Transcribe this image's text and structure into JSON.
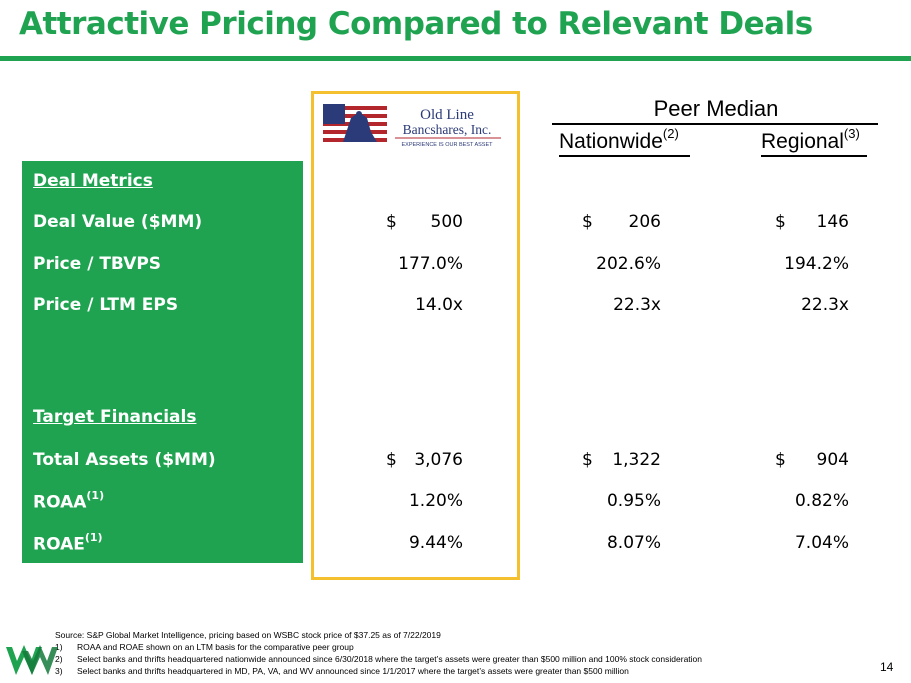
{
  "title": "Attractive Pricing Compared to Relevant Deals",
  "logo": {
    "line1": "Old Line",
    "line2": "Bancshares, Inc.",
    "tagline": "EXPERIENCE IS OUR BEST ASSET"
  },
  "peer_median": {
    "title": "Peer Median",
    "nationwide": "Nationwide",
    "nationwide_note": "(2)",
    "regional": "Regional",
    "regional_note": "(3)"
  },
  "sections": {
    "deal_metrics": "Deal Metrics",
    "target_financials": "Target Financials"
  },
  "rows": [
    {
      "label": "Deal Value ($MM)",
      "note": "",
      "old_line": "500",
      "old_cur": "$",
      "nationwide": "206",
      "nat_cur": "$",
      "regional": "146",
      "reg_cur": "$"
    },
    {
      "label": "Price / TBVPS",
      "note": "",
      "old_line": "177.0%",
      "old_cur": "",
      "nationwide": "202.6%",
      "nat_cur": "",
      "regional": "194.2%",
      "reg_cur": ""
    },
    {
      "label": "Price / LTM EPS",
      "note": "",
      "old_line": "14.0x",
      "old_cur": "",
      "nationwide": "22.3x",
      "nat_cur": "",
      "regional": "22.3x",
      "reg_cur": ""
    },
    {
      "label": "Total Assets ($MM)",
      "note": "",
      "old_line": "3,076",
      "old_cur": "$",
      "nationwide": "1,322",
      "nat_cur": "$",
      "regional": "904",
      "reg_cur": "$"
    },
    {
      "label": "ROAA",
      "note": "(1)",
      "old_line": "1.20%",
      "old_cur": "",
      "nationwide": "0.95%",
      "nat_cur": "",
      "regional": "0.82%",
      "reg_cur": ""
    },
    {
      "label": "ROAE",
      "note": "(1)",
      "old_line": "9.44%",
      "old_cur": "",
      "nationwide": "8.07%",
      "nat_cur": "",
      "regional": "7.04%",
      "reg_cur": ""
    }
  ],
  "footnotes": {
    "source": "Source: S&P Global Market Intelligence, pricing based on WSBC stock price of $37.25 as of 7/22/2019",
    "notes": [
      {
        "num": "1)",
        "text": "ROAA and ROAE shown on an LTM basis for the comparative peer group"
      },
      {
        "num": "2)",
        "text": "Select banks and thrifts headquartered nationwide announced since 6/30/2018 where the target’s assets were greater than $500 million and 100% stock consideration"
      },
      {
        "num": "3)",
        "text": "Select banks and thrifts headquartered in MD, PA, VA, and WV announced since 1/1/2017 where the target’s assets were greater than $500 million"
      }
    ]
  },
  "page_number": "14",
  "colors": {
    "brand_green": "#1fa351",
    "highlight_gold": "#f5c02d"
  }
}
